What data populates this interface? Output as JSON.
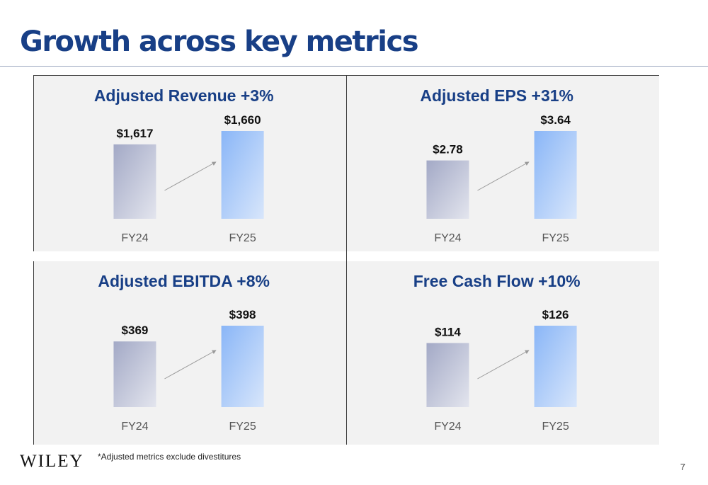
{
  "title": "Growth across key metrics",
  "footnote": "*Adjusted metrics exclude divestitures",
  "logo": "WILEY",
  "page_number": "7",
  "colors": {
    "title": "#183f86",
    "fy24_bar_gradient": [
      "#a3a9c6",
      "#e3e5ee"
    ],
    "fy25_bar_gradient": [
      "#8ab6f7",
      "#d8e6fb"
    ],
    "arrow": "#9a9a9a"
  },
  "chart_data": [
    {
      "type": "bar",
      "title": "Adjusted Revenue +3%",
      "categories": [
        "FY24",
        "FY25"
      ],
      "values": [
        1617,
        1660
      ],
      "value_labels": [
        "$1,617",
        "$1,660"
      ],
      "trend_arrow": true
    },
    {
      "type": "bar",
      "title": "Adjusted EPS +31%",
      "categories": [
        "FY24",
        "FY25"
      ],
      "values": [
        2.78,
        3.64
      ],
      "value_labels": [
        "$2.78",
        "$3.64"
      ],
      "trend_arrow": true
    },
    {
      "type": "bar",
      "title": "Adjusted EBITDA +8%",
      "categories": [
        "FY24",
        "FY25"
      ],
      "values": [
        369,
        398
      ],
      "value_labels": [
        "$369",
        "$398"
      ],
      "trend_arrow": true
    },
    {
      "type": "bar",
      "title": "Free Cash Flow +10%",
      "categories": [
        "FY24",
        "FY25"
      ],
      "values": [
        114,
        126
      ],
      "value_labels": [
        "$114",
        "$126"
      ],
      "trend_arrow": true
    }
  ]
}
